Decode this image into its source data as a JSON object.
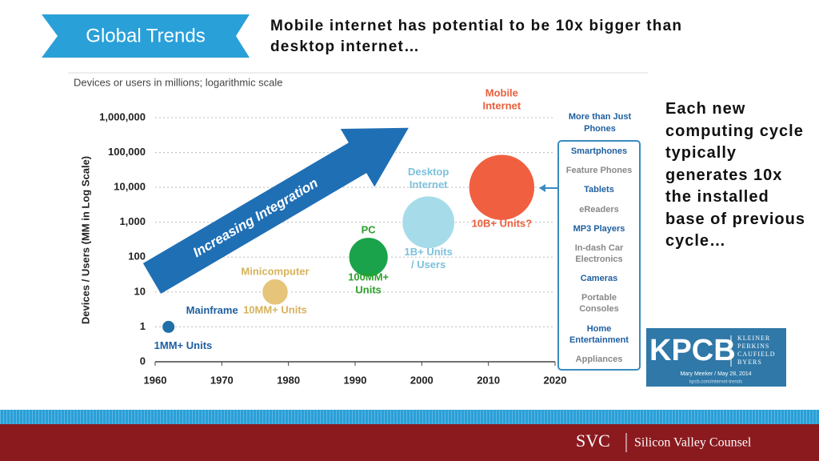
{
  "header": {
    "tag": "Global Trends",
    "headline": "Mobile internet has potential to be 10x bigger than desktop internet…"
  },
  "side_text": "Each new computing cycle typically generates 10x the installed base of previous cycle…",
  "chart_data": {
    "type": "bubble",
    "subtitle": "Devices or users in millions; logarithmic scale",
    "y_label": "Devices / Users (MM in Log Scale)",
    "log_scale": true,
    "grid": true,
    "xlim": [
      1960,
      2020
    ],
    "xticks": [
      1960,
      1970,
      1980,
      1990,
      2000,
      2010,
      2020
    ],
    "ylim": [
      0.1,
      1000000
    ],
    "yticks": [
      {
        "value": 0.1,
        "label": "0"
      },
      1,
      10,
      100,
      {
        "value": 1000,
        "label": "1,000"
      },
      {
        "value": 10000,
        "label": "10,000"
      },
      {
        "value": 100000,
        "label": "100,000"
      },
      {
        "value": 1000000,
        "label": "1,000,000"
      }
    ],
    "x": [
      1962,
      1978,
      1992,
      2001,
      2012
    ],
    "values": [
      1,
      10,
      100,
      1000,
      10000
    ],
    "colors": [
      "#1f6fa8",
      "#e6c57a",
      "#1aa34a",
      "#a6dcea",
      "#f06040"
    ],
    "label_colors": [
      "#1f5fa0",
      "#d6b35c",
      "#2ca02c",
      "#7cc1dc",
      "#e8603c"
    ],
    "point_names": [
      [
        "Mainframe"
      ],
      [
        "Minicomputer"
      ],
      [
        "PC"
      ],
      [
        "Desktop",
        "Internet"
      ],
      [
        "Mobile",
        "Internet"
      ]
    ],
    "point_notes": [
      [
        "1MM+ Units"
      ],
      [
        "10MM+ Units"
      ],
      [
        "100MM+",
        "Units"
      ],
      [
        "1B+ Units",
        "/ Users"
      ],
      [
        "10B+ Units?"
      ]
    ],
    "arrow_text": "Increasing Integration",
    "device_list": {
      "header": "More than Just Phones",
      "items": [
        {
          "text": "Smartphones",
          "highlight": true
        },
        {
          "text": "Feature Phones",
          "highlight": false
        },
        {
          "text": "Tablets",
          "highlight": true
        },
        {
          "text": "eReaders",
          "highlight": false
        },
        {
          "text": "MP3 Players",
          "highlight": true
        },
        {
          "text": "In-dash Car Electronics",
          "highlight": false
        },
        {
          "text": "Cameras",
          "highlight": true
        },
        {
          "text": "Portable Consoles",
          "highlight": false
        },
        {
          "text": "Home Entertainment",
          "highlight": true
        },
        {
          "text": "Appliances",
          "highlight": false
        }
      ]
    }
  },
  "logo": {
    "mark": "KPCB",
    "firm": [
      "KLEINER",
      "PERKINS",
      "CAUFIELD",
      "BYERS"
    ],
    "byline": "Mary Meeker / May 28, 2014",
    "url": "kpcb.com/internet-trends"
  },
  "footer": {
    "mark": "SVC",
    "name": "Silicon Valley Counsel"
  }
}
